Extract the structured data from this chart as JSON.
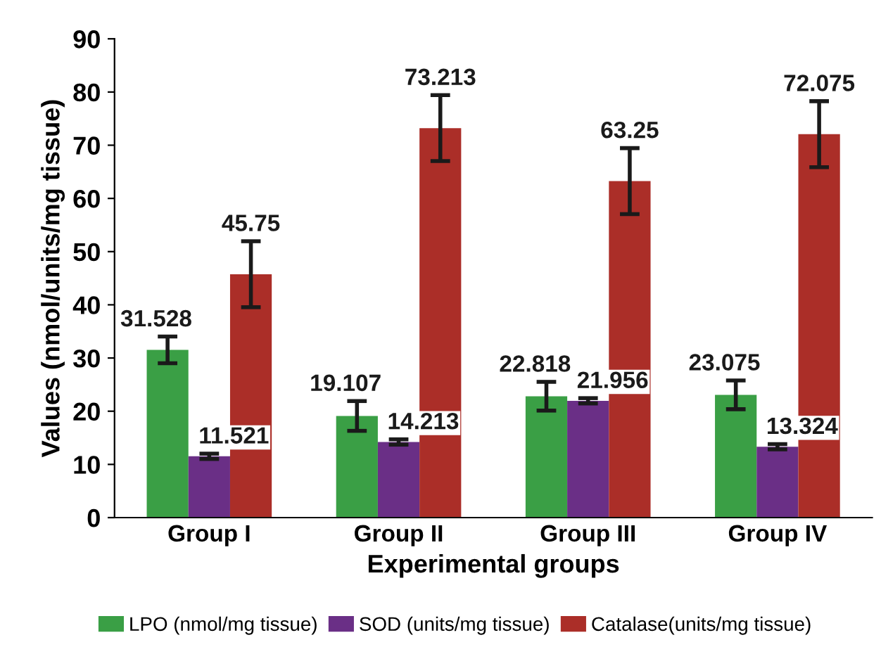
{
  "chart_data": {
    "type": "bar",
    "xlabel": "Experimental groups",
    "ylabel": "Values (nmol/units/mg tissue)",
    "categories": [
      "Group I",
      "Group II",
      "Group III",
      "Group IV"
    ],
    "series": [
      {
        "name": "LPO (nmol/mg tissue)",
        "color": "#3a9f45",
        "values": [
          31.528,
          19.107,
          22.818,
          23.075
        ],
        "errors": [
          2.5,
          2.8,
          2.7,
          2.7
        ],
        "value_labels": [
          "31.528",
          "19.107",
          "22.818",
          "23.075"
        ]
      },
      {
        "name": "SOD (units/mg tissue)",
        "color": "#6a2f86",
        "values": [
          11.521,
          14.213,
          21.956,
          13.324
        ],
        "errors": [
          0.5,
          0.5,
          0.5,
          0.5
        ],
        "value_labels": [
          "11.521",
          "14.213",
          "21.956",
          "13.324"
        ]
      },
      {
        "name": "Catalase(units/mg tissue)",
        "color": "#ab2e28",
        "values": [
          45.75,
          73.213,
          63.25,
          72.075
        ],
        "errors": [
          6.2,
          6.2,
          6.2,
          6.2
        ],
        "value_labels": [
          "45.75",
          "73.213",
          "63.25",
          "72.075"
        ]
      }
    ],
    "ylim": [
      0,
      90
    ],
    "yticks": [
      0,
      10,
      20,
      30,
      40,
      50,
      60,
      70,
      80,
      90
    ],
    "grid": false,
    "legend": "bottom"
  }
}
